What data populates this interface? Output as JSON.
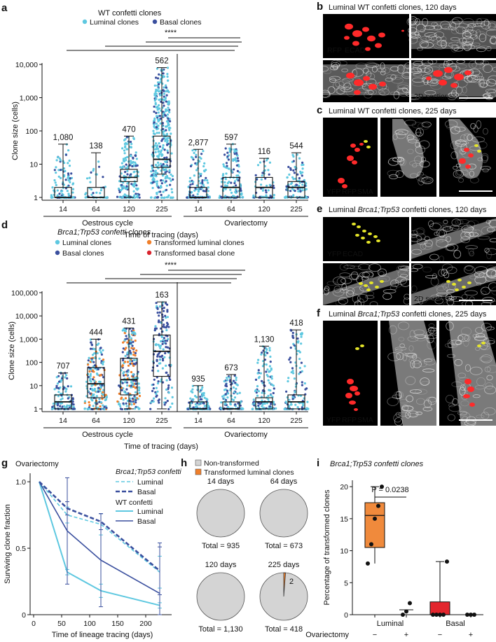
{
  "colors": {
    "luminal": "#5ec8e0",
    "basal": "#3a4f9e",
    "transformed_luminal": "#f07f2a",
    "transformed_basal": "#d9232d",
    "box_orange": "#f08a3c",
    "box_red": "#e3262e",
    "pie_gray": "#d4d4d4",
    "rfp": "#ff2a2a",
    "yfp": "#e6e629"
  },
  "panels": {
    "a": {
      "letter": "a",
      "legend_title": "WT confetti clones",
      "legend_items": [
        "Luminal clones",
        "Basal clones"
      ],
      "significance": "****",
      "ylabel": "Clone size (cells)",
      "yticks": [
        "10,000",
        "1,000",
        "100",
        "10",
        "1"
      ],
      "groups": [
        "Oestrous cycle",
        "Ovariectomy"
      ],
      "xlabel": "Time of tracing  (days)",
      "boxes": [
        {
          "day": "14",
          "n": "1,080",
          "min": 1,
          "q1": 1,
          "med": 1,
          "q3": 2,
          "max": 40
        },
        {
          "day": "64",
          "n": "138",
          "min": 1,
          "q1": 1,
          "med": 1,
          "q3": 2,
          "max": 22
        },
        {
          "day": "120",
          "n": "470",
          "min": 1,
          "q1": 3,
          "med": 4,
          "q3": 7,
          "max": 70
        },
        {
          "day": "225",
          "n": "562",
          "min": 5,
          "q1": 8,
          "med": 14,
          "q3": 70,
          "max": 8000
        },
        {
          "day": "14",
          "n": "2,877",
          "min": 1,
          "q1": 1,
          "med": 1,
          "q3": 2,
          "max": 28
        },
        {
          "day": "64",
          "n": "597",
          "min": 1,
          "q1": 1,
          "med": 2,
          "q3": 4,
          "max": 40
        },
        {
          "day": "120",
          "n": "116",
          "min": 1,
          "q1": 1,
          "med": 2,
          "q3": 4,
          "max": 15
        },
        {
          "day": "225",
          "n": "544",
          "min": 1,
          "q1": 1,
          "med": 2,
          "q3": 3,
          "max": 22
        }
      ]
    },
    "b": {
      "letter": "b",
      "title": "Luminal WT confetti clones, 120 days",
      "label_rfp": "RFP",
      "label_ecad": "ECAD",
      "section": "2D section"
    },
    "c": {
      "letter": "c",
      "title": "Luminal WT confetti clones, 225 days",
      "label_yfp": "YFP",
      "label_rfp": "RFP",
      "label_sma": "SMA"
    },
    "d": {
      "letter": "d",
      "legend_title": "Brca1;Trp53 confetti clones",
      "legend_items": [
        "Luminal clones",
        "Transformed luminal clones",
        "Basal clones",
        "Transformed basal clone"
      ],
      "significance": "****",
      "ylabel": "Clone size (cells)",
      "yticks": [
        "100,000",
        "10,000",
        "1,000",
        "100",
        "10",
        "1"
      ],
      "groups": [
        "Oestrous cycle",
        "Ovariectomy"
      ],
      "xlabel": "Time of tracing  (days)",
      "boxes": [
        {
          "day": "14",
          "n": "707",
          "min": 1,
          "q1": 1,
          "med": 2,
          "q3": 4,
          "max": 35
        },
        {
          "day": "64",
          "n": "444",
          "min": 1,
          "q1": 3,
          "med": 12,
          "q3": 60,
          "max": 1000
        },
        {
          "day": "120",
          "n": "431",
          "min": 1,
          "q1": 4,
          "med": 18,
          "q3": 150,
          "max": 3000
        },
        {
          "day": "225",
          "n": "163",
          "min": 1,
          "q1": 25,
          "med": 300,
          "q3": 1500,
          "max": 40000
        },
        {
          "day": "14",
          "n": "935",
          "min": 1,
          "q1": 1,
          "med": 1,
          "q3": 2,
          "max": 10
        },
        {
          "day": "64",
          "n": "673",
          "min": 1,
          "q1": 1,
          "med": 1,
          "q3": 2,
          "max": 30
        },
        {
          "day": "120",
          "n": "1,130",
          "min": 1,
          "q1": 1,
          "med": 2,
          "q3": 3,
          "max": 500
        },
        {
          "day": "225",
          "n": "418",
          "min": 1,
          "q1": 1,
          "med": 2,
          "q3": 4,
          "max": 2500
        }
      ]
    },
    "e": {
      "letter": "e",
      "title_pre": "Luminal ",
      "title_it": "Brca1;Trp53",
      "title_post": " confetti clones, 120 days",
      "label_yfp": "YFP",
      "label_ecad": "ECAD",
      "section": "2D section"
    },
    "f": {
      "letter": "f",
      "title_pre": "Luminal ",
      "title_it": "Brca1;Trp53",
      "title_post": " confetti clones, 225 days",
      "label_yfp": "YFP",
      "label_rfp": "RFP",
      "label_sma": "SMA"
    },
    "g": {
      "letter": "g",
      "title": "Ovariectomy",
      "legend_brca_title": "Brca1;Trp53 confetti",
      "legend_wt_title": "WT confetti",
      "legend_items": [
        "Luminal",
        "Basal",
        "Luminal",
        "Basal"
      ],
      "ylabel": "Surviving clone fraction",
      "xlabel": "Time of lineage tracing  (days)",
      "yticks": [
        "1.0",
        "0.5",
        "0"
      ],
      "xticks": [
        "0",
        "50",
        "100",
        "150",
        "200"
      ],
      "series": [
        {
          "name": "Brca1;Trp53 Luminal",
          "x": [
            10,
            60,
            120,
            225
          ],
          "y": [
            1.0,
            0.75,
            0.68,
            0.32
          ]
        },
        {
          "name": "Brca1;Trp53 Basal",
          "x": [
            10,
            60,
            120,
            225
          ],
          "y": [
            1.0,
            0.8,
            0.7,
            0.33
          ]
        },
        {
          "name": "WT Luminal",
          "x": [
            10,
            60,
            120,
            225
          ],
          "y": [
            1.0,
            0.32,
            0.18,
            0.07
          ]
        },
        {
          "name": "WT Basal",
          "x": [
            10,
            60,
            120,
            225
          ],
          "y": [
            1.0,
            0.63,
            0.41,
            0.16
          ]
        }
      ]
    },
    "h": {
      "letter": "h",
      "legend_items": [
        "Non-transformed",
        "Transformed luminal clones"
      ],
      "pies": [
        {
          "day": "14 days",
          "total": "Total = 935",
          "transformed": 0
        },
        {
          "day": "64 days",
          "total": "Total = 673",
          "transformed": 0
        },
        {
          "day": "120 days",
          "total": "Total = 1,130",
          "transformed": 0
        },
        {
          "day": "225 days",
          "total": "Total = 418",
          "transformed": 2,
          "transformed_label": "2"
        }
      ]
    },
    "i": {
      "letter": "i",
      "title": "Brca1;Trp53 confetti clones",
      "p_value": "P = 0.0238",
      "ylabel": "Percentage of transformed clones",
      "yticks": [
        "20",
        "15",
        "10",
        "5",
        "0"
      ],
      "categories": [
        "Luminal",
        "Basal"
      ],
      "ovx_label": "Ovariectomy",
      "ovx_signs": [
        "−",
        "+",
        "−",
        "+"
      ],
      "groups": [
        {
          "name": "Luminal −",
          "min": 8,
          "q1": 10.5,
          "med": 15.5,
          "q3": 17.5,
          "max": 20,
          "points": [
            8,
            11,
            15,
            17,
            20
          ]
        },
        {
          "name": "Luminal +",
          "points": [
            0,
            0.5,
            1.8
          ]
        },
        {
          "name": "Basal −",
          "min": 0,
          "q1": 0,
          "med": 0,
          "q3": 2,
          "max": 8.3,
          "points": [
            0,
            0,
            0,
            0,
            8.3
          ]
        },
        {
          "name": "Basal +",
          "points": [
            0,
            0,
            0
          ]
        }
      ]
    }
  }
}
